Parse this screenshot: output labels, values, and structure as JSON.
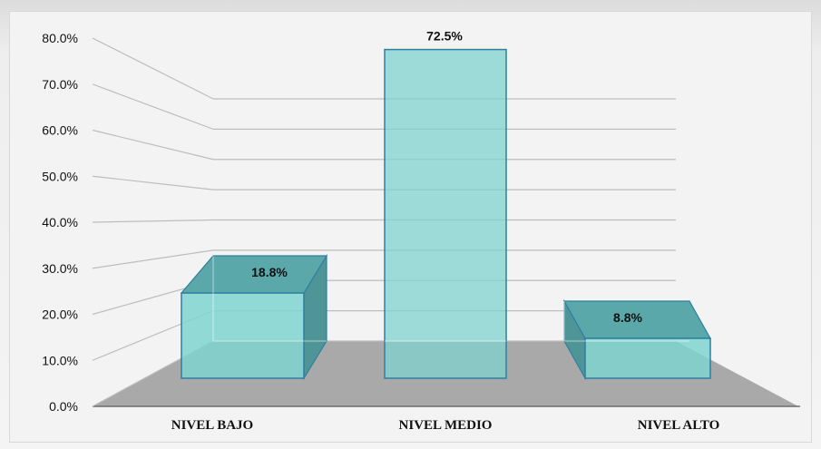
{
  "chart_data": {
    "type": "bar",
    "categories": [
      "NIVEL BAJO",
      "NIVEL MEDIO",
      "NIVEL ALTO"
    ],
    "values": [
      18.8,
      72.5,
      8.8
    ],
    "data_labels": [
      "18.8%",
      "72.5%",
      "8.8%"
    ],
    "title": "",
    "xlabel": "",
    "ylabel": "",
    "ylim": [
      0,
      80
    ],
    "yticks": [
      "0.0%",
      "10.0%",
      "20.0%",
      "30.0%",
      "40.0%",
      "50.0%",
      "60.0%",
      "70.0%",
      "80.0%"
    ],
    "grid": true,
    "legend": "none",
    "style": "3d",
    "colors": {
      "bar_front": "#7fd3cf",
      "bar_top": "#5aa8aa",
      "bar_side": "#4f9597",
      "bar_edge": "#2f7fa0",
      "floor": "#a9a9a9",
      "gridline": "#bdbdbd"
    }
  }
}
